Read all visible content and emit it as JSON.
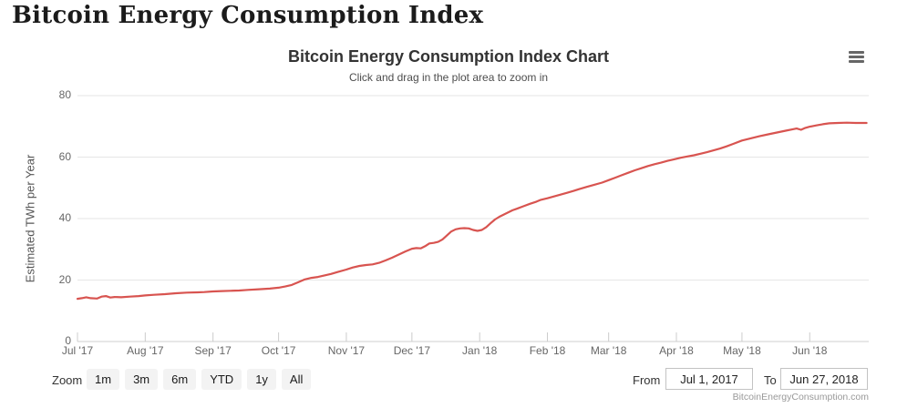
{
  "page_title": "Bitcoin Energy Consumption Index",
  "chart": {
    "title": "Bitcoin Energy Consumption Index Chart",
    "subtitle": "Click and drag in the plot area to zoom in",
    "credit": "BitcoinEnergyConsumption.com",
    "menu_icon": "hamburger-menu-icon"
  },
  "controls": {
    "zoom_label": "Zoom",
    "zoom_buttons": [
      "1m",
      "3m",
      "6m",
      "YTD",
      "1y",
      "All"
    ],
    "from_label": "From",
    "from_value": "Jul 1, 2017",
    "to_label": "To",
    "to_value": "Jun 27, 2018"
  },
  "chart_data": {
    "type": "line",
    "title": "Bitcoin Energy Consumption Index Chart",
    "subtitle": "Click and drag in the plot area to zoom in",
    "ylabel": "Estimated TWh per Year",
    "xlabel": "",
    "ylim": [
      0,
      80
    ],
    "yticks": [
      0,
      20,
      40,
      60,
      80
    ],
    "grid": true,
    "legend": "none",
    "line_color": "#d85450",
    "grid_color": "#e6e6e6",
    "axis_color": "#cfcfcf",
    "x_unit": "days since Jul 1, 2017",
    "x_range": [
      0,
      362
    ],
    "x_tick_labels": [
      "Jul '17",
      "Aug '17",
      "Sep '17",
      "Oct '17",
      "Nov '17",
      "Dec '17",
      "Jan '18",
      "Feb '18",
      "Mar '18",
      "Apr '18",
      "May '18",
      "Jun '18"
    ],
    "x_tick_days": [
      0,
      31,
      62,
      92,
      123,
      153,
      184,
      215,
      243,
      274,
      304,
      335
    ],
    "series": [
      {
        "name": "Estimated TWh per Year",
        "points": [
          [
            0,
            13.9
          ],
          [
            2,
            14.1
          ],
          [
            4,
            14.4
          ],
          [
            6,
            14.1
          ],
          [
            9,
            14.0
          ],
          [
            11,
            14.6
          ],
          [
            13,
            14.8
          ],
          [
            15,
            14.3
          ],
          [
            17,
            14.5
          ],
          [
            20,
            14.4
          ],
          [
            24,
            14.6
          ],
          [
            28,
            14.8
          ],
          [
            31,
            15.0
          ],
          [
            35,
            15.2
          ],
          [
            40,
            15.4
          ],
          [
            45,
            15.7
          ],
          [
            50,
            15.9
          ],
          [
            55,
            16.0
          ],
          [
            58,
            16.1
          ],
          [
            62,
            16.3
          ],
          [
            66,
            16.4
          ],
          [
            70,
            16.5
          ],
          [
            74,
            16.6
          ],
          [
            78,
            16.8
          ],
          [
            83,
            17.0
          ],
          [
            88,
            17.2
          ],
          [
            92,
            17.5
          ],
          [
            95,
            17.9
          ],
          [
            98,
            18.4
          ],
          [
            101,
            19.3
          ],
          [
            104,
            20.2
          ],
          [
            107,
            20.7
          ],
          [
            110,
            21.0
          ],
          [
            113,
            21.5
          ],
          [
            116,
            22.0
          ],
          [
            119,
            22.6
          ],
          [
            123,
            23.4
          ],
          [
            126,
            24.1
          ],
          [
            129,
            24.6
          ],
          [
            132,
            24.9
          ],
          [
            135,
            25.1
          ],
          [
            138,
            25.6
          ],
          [
            141,
            26.4
          ],
          [
            144,
            27.3
          ],
          [
            147,
            28.3
          ],
          [
            150,
            29.3
          ],
          [
            153,
            30.2
          ],
          [
            155,
            30.4
          ],
          [
            157,
            30.3
          ],
          [
            159,
            31.0
          ],
          [
            161,
            31.9
          ],
          [
            163,
            32.1
          ],
          [
            165,
            32.4
          ],
          [
            167,
            33.2
          ],
          [
            169,
            34.5
          ],
          [
            171,
            35.8
          ],
          [
            173,
            36.5
          ],
          [
            175,
            36.8
          ],
          [
            177,
            36.9
          ],
          [
            179,
            36.8
          ],
          [
            181,
            36.3
          ],
          [
            183,
            36.0
          ],
          [
            185,
            36.3
          ],
          [
            187,
            37.2
          ],
          [
            189,
            38.5
          ],
          [
            191,
            39.7
          ],
          [
            193,
            40.6
          ],
          [
            195,
            41.3
          ],
          [
            197,
            42.0
          ],
          [
            199,
            42.7
          ],
          [
            201,
            43.2
          ],
          [
            204,
            44.0
          ],
          [
            207,
            44.8
          ],
          [
            210,
            45.5
          ],
          [
            212,
            46.1
          ],
          [
            215,
            46.6
          ],
          [
            218,
            47.2
          ],
          [
            221,
            47.8
          ],
          [
            224,
            48.4
          ],
          [
            227,
            49.0
          ],
          [
            230,
            49.7
          ],
          [
            233,
            50.3
          ],
          [
            236,
            50.9
          ],
          [
            240,
            51.7
          ],
          [
            243,
            52.5
          ],
          [
            246,
            53.3
          ],
          [
            249,
            54.1
          ],
          [
            252,
            54.9
          ],
          [
            255,
            55.7
          ],
          [
            258,
            56.4
          ],
          [
            261,
            57.1
          ],
          [
            264,
            57.7
          ],
          [
            267,
            58.2
          ],
          [
            270,
            58.8
          ],
          [
            273,
            59.3
          ],
          [
            276,
            59.8
          ],
          [
            279,
            60.2
          ],
          [
            282,
            60.6
          ],
          [
            285,
            61.1
          ],
          [
            288,
            61.6
          ],
          [
            291,
            62.2
          ],
          [
            294,
            62.8
          ],
          [
            297,
            63.5
          ],
          [
            300,
            64.3
          ],
          [
            304,
            65.4
          ],
          [
            308,
            66.1
          ],
          [
            312,
            66.8
          ],
          [
            316,
            67.4
          ],
          [
            320,
            68.0
          ],
          [
            324,
            68.6
          ],
          [
            327,
            69.0
          ],
          [
            329,
            69.3
          ],
          [
            331,
            68.9
          ],
          [
            333,
            69.5
          ],
          [
            335,
            69.9
          ],
          [
            338,
            70.3
          ],
          [
            341,
            70.7
          ],
          [
            344,
            71.0
          ],
          [
            348,
            71.1
          ],
          [
            352,
            71.2
          ],
          [
            356,
            71.1
          ],
          [
            361,
            71.1
          ]
        ]
      }
    ]
  }
}
